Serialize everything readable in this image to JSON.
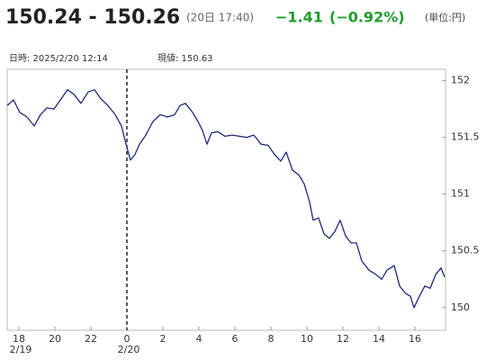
{
  "header": {
    "quote": "150.24 - 150.26",
    "time": "(20日 17:40)",
    "change": "−1.41",
    "change_pct": "(−0.92%)",
    "unit": "(単位:円)",
    "cursor_time": "日時: 2025/2/20 12:14",
    "cursor_value": "現値: 150.63"
  },
  "chart_data": {
    "type": "line",
    "color": "#1f2a7a",
    "x": [
      -6.65,
      -6.3,
      -5.95,
      -5.55,
      -5.15,
      -4.8,
      -4.45,
      -4.05,
      -3.65,
      -3.3,
      -2.95,
      -2.55,
      -2.15,
      -1.8,
      -1.45,
      -1.05,
      -0.65,
      -0.3,
      -0.05,
      0.2,
      0.45,
      0.7,
      1.05,
      1.45,
      1.85,
      2.25,
      2.65,
      2.95,
      3.25,
      3.65,
      3.95,
      4.2,
      4.45,
      4.7,
      5.05,
      5.45,
      5.85,
      6.25,
      6.65,
      7.05,
      7.45,
      7.85,
      8.2,
      8.55,
      8.85,
      9.2,
      9.55,
      9.85,
      10.15,
      10.35,
      10.65,
      10.95,
      11.25,
      11.55,
      11.85,
      12.15,
      12.45,
      12.75,
      13.05,
      13.45,
      13.85,
      14.15,
      14.45,
      14.85,
      15.15,
      15.45,
      15.75,
      15.95,
      16.25,
      16.55,
      16.85,
      17.15,
      17.45,
      17.65
    ],
    "values": [
      151.78,
      151.83,
      151.72,
      151.68,
      151.6,
      151.7,
      151.76,
      151.75,
      151.84,
      151.92,
      151.88,
      151.8,
      151.9,
      151.92,
      151.84,
      151.78,
      151.7,
      151.6,
      151.44,
      151.3,
      151.35,
      151.44,
      151.52,
      151.64,
      151.7,
      151.68,
      151.7,
      151.78,
      151.8,
      151.72,
      151.64,
      151.56,
      151.44,
      151.54,
      151.55,
      151.51,
      151.52,
      151.51,
      151.5,
      151.52,
      151.44,
      151.43,
      151.35,
      151.29,
      151.37,
      151.21,
      151.17,
      151.09,
      150.93,
      150.77,
      150.79,
      150.65,
      150.61,
      150.67,
      150.77,
      150.63,
      150.57,
      150.57,
      150.41,
      150.33,
      150.29,
      150.25,
      150.33,
      150.37,
      150.19,
      150.13,
      150.1,
      150.0,
      150.1,
      150.19,
      150.17,
      150.29,
      150.35,
      150.27
    ],
    "xlim": [
      -6.65,
      17.7
    ],
    "xticks": [
      {
        "value": -6,
        "label": "18"
      },
      {
        "value": -4,
        "label": "20"
      },
      {
        "value": -2,
        "label": "22"
      },
      0,
      2,
      4,
      6,
      8,
      10,
      12,
      14,
      16
    ],
    "date_marks": [
      {
        "value": -6,
        "label": "2/19"
      },
      {
        "value": 0,
        "label": "2/20"
      }
    ],
    "day_boundary": 0,
    "ylim": [
      149.8,
      152.1
    ],
    "yticks": [
      150,
      150.5,
      151,
      151.5,
      152
    ],
    "grid": false
  }
}
